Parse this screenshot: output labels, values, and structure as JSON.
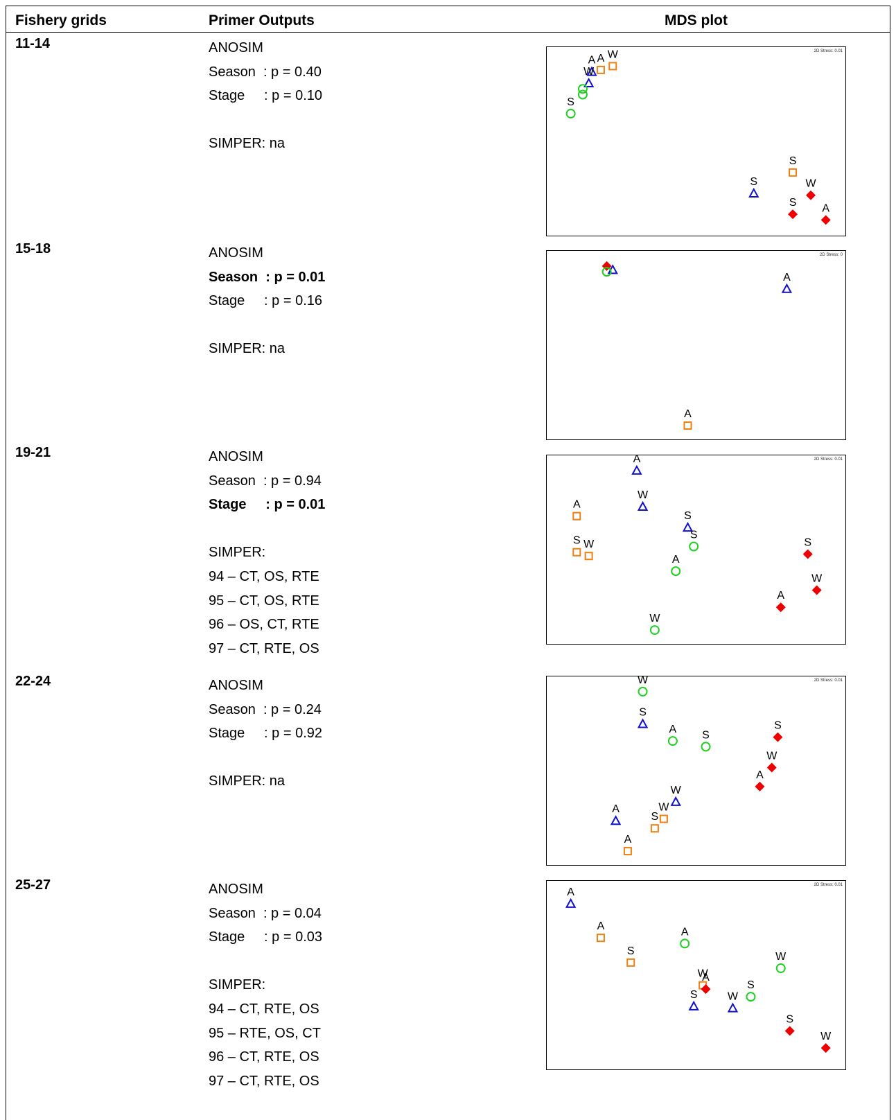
{
  "headers": {
    "grids": "Fishery grids",
    "outputs": "Primer Outputs",
    "plot": "MDS plot"
  },
  "rows": [
    {
      "grid": "11-14",
      "lines": [
        {
          "text": "ANOSIM",
          "bold": false
        },
        {
          "text": "Season  : p = 0.40",
          "bold": false
        },
        {
          "text": "Stage     : p = 0.10",
          "bold": false
        },
        {
          "text": "",
          "bold": false
        },
        {
          "text": "SIMPER: na",
          "bold": false
        }
      ],
      "stress": "2D Stress: 0.01",
      "points": [
        {
          "label": "A",
          "shape": "square",
          "x": 0.18,
          "y": 0.12
        },
        {
          "label": "W",
          "shape": "square",
          "x": 0.22,
          "y": 0.1
        },
        {
          "label": "A",
          "shape": "triangle",
          "x": 0.15,
          "y": 0.13
        },
        {
          "label": "W",
          "shape": "triangle",
          "x": 0.14,
          "y": 0.19
        },
        {
          "label": "",
          "shape": "circle",
          "x": 0.12,
          "y": 0.22
        },
        {
          "label": "",
          "shape": "circle",
          "x": 0.12,
          "y": 0.25
        },
        {
          "label": "S",
          "shape": "circle",
          "x": 0.08,
          "y": 0.35
        },
        {
          "label": "S",
          "shape": "square",
          "x": 0.82,
          "y": 0.66
        },
        {
          "label": "S",
          "shape": "triangle",
          "x": 0.69,
          "y": 0.77
        },
        {
          "label": "W",
          "shape": "diamond",
          "x": 0.88,
          "y": 0.78
        },
        {
          "label": "S",
          "shape": "diamond",
          "x": 0.82,
          "y": 0.88
        },
        {
          "label": "A",
          "shape": "diamond",
          "x": 0.93,
          "y": 0.91
        }
      ]
    },
    {
      "grid": "15-18",
      "lines": [
        {
          "text": "ANOSIM",
          "bold": false
        },
        {
          "text": "Season  : p = 0.01",
          "bold": true
        },
        {
          "text": "Stage     : p = 0.16",
          "bold": false
        },
        {
          "text": "",
          "bold": false
        },
        {
          "text": "SIMPER: na",
          "bold": false
        }
      ],
      "stress": "2D Stress: 0",
      "points": [
        {
          "label": "",
          "shape": "diamond",
          "x": 0.2,
          "y": 0.08
        },
        {
          "label": "",
          "shape": "triangle",
          "x": 0.22,
          "y": 0.1
        },
        {
          "label": "",
          "shape": "circle",
          "x": 0.2,
          "y": 0.11
        },
        {
          "label": "A",
          "shape": "triangle",
          "x": 0.8,
          "y": 0.2
        },
        {
          "label": "A",
          "shape": "square",
          "x": 0.47,
          "y": 0.92
        }
      ]
    },
    {
      "grid": "19-21",
      "lines": [
        {
          "text": "ANOSIM",
          "bold": false
        },
        {
          "text": "Season  : p = 0.94",
          "bold": false
        },
        {
          "text": "Stage     : p = 0.01",
          "bold": true
        },
        {
          "text": "",
          "bold": false
        },
        {
          "text": "SIMPER:",
          "bold": false
        },
        {
          "text": "94 – CT, OS, RTE",
          "bold": false
        },
        {
          "text": "95 – CT, OS, RTE",
          "bold": false
        },
        {
          "text": "96 – OS, CT, RTE",
          "bold": false
        },
        {
          "text": "97 – CT, RTE, OS",
          "bold": false
        }
      ],
      "stress": "2D Stress: 0.01",
      "points": [
        {
          "label": "A",
          "shape": "triangle",
          "x": 0.3,
          "y": 0.08
        },
        {
          "label": "W",
          "shape": "triangle",
          "x": 0.32,
          "y": 0.27
        },
        {
          "label": "A",
          "shape": "square",
          "x": 0.1,
          "y": 0.32
        },
        {
          "label": "S",
          "shape": "triangle",
          "x": 0.47,
          "y": 0.38
        },
        {
          "label": "S",
          "shape": "circle",
          "x": 0.49,
          "y": 0.48
        },
        {
          "label": "S",
          "shape": "square",
          "x": 0.1,
          "y": 0.51
        },
        {
          "label": "W",
          "shape": "square",
          "x": 0.14,
          "y": 0.53
        },
        {
          "label": "A",
          "shape": "circle",
          "x": 0.43,
          "y": 0.61
        },
        {
          "label": "S",
          "shape": "diamond",
          "x": 0.87,
          "y": 0.52
        },
        {
          "label": "W",
          "shape": "diamond",
          "x": 0.9,
          "y": 0.71
        },
        {
          "label": "A",
          "shape": "diamond",
          "x": 0.78,
          "y": 0.8
        },
        {
          "label": "W",
          "shape": "circle",
          "x": 0.36,
          "y": 0.92
        }
      ]
    },
    {
      "grid": "22-24",
      "lines": [
        {
          "text": "ANOSIM",
          "bold": false
        },
        {
          "text": "Season  : p = 0.24",
          "bold": false
        },
        {
          "text": "Stage     : p = 0.92",
          "bold": false
        },
        {
          "text": "",
          "bold": false
        },
        {
          "text": "SIMPER: na",
          "bold": false
        }
      ],
      "stress": "2D Stress: 0.01",
      "points": [
        {
          "label": "W",
          "shape": "circle",
          "x": 0.32,
          "y": 0.08
        },
        {
          "label": "S",
          "shape": "triangle",
          "x": 0.32,
          "y": 0.25
        },
        {
          "label": "A",
          "shape": "circle",
          "x": 0.42,
          "y": 0.34
        },
        {
          "label": "S",
          "shape": "circle",
          "x": 0.53,
          "y": 0.37
        },
        {
          "label": "S",
          "shape": "diamond",
          "x": 0.77,
          "y": 0.32
        },
        {
          "label": "W",
          "shape": "diamond",
          "x": 0.75,
          "y": 0.48
        },
        {
          "label": "A",
          "shape": "diamond",
          "x": 0.71,
          "y": 0.58
        },
        {
          "label": "W",
          "shape": "triangle",
          "x": 0.43,
          "y": 0.66
        },
        {
          "label": "W",
          "shape": "square",
          "x": 0.39,
          "y": 0.75
        },
        {
          "label": "S",
          "shape": "square",
          "x": 0.36,
          "y": 0.8
        },
        {
          "label": "A",
          "shape": "triangle",
          "x": 0.23,
          "y": 0.76
        },
        {
          "label": "A",
          "shape": "square",
          "x": 0.27,
          "y": 0.92
        }
      ]
    },
    {
      "grid": "25-27",
      "lines": [
        {
          "text": "ANOSIM",
          "bold": false
        },
        {
          "text": "Season  : p = 0.04",
          "bold": false
        },
        {
          "text": "Stage     : p = 0.03",
          "bold": false
        },
        {
          "text": "",
          "bold": false
        },
        {
          "text": "SIMPER:",
          "bold": false
        },
        {
          "text": "94 – CT, RTE, OS",
          "bold": false
        },
        {
          "text": "95 – RTE, OS, CT",
          "bold": false
        },
        {
          "text": "96 – CT, RTE, OS",
          "bold": false
        },
        {
          "text": "97 – CT, RTE, OS",
          "bold": false
        }
      ],
      "stress": "2D Stress: 0.01",
      "points": [
        {
          "label": "A",
          "shape": "triangle",
          "x": 0.08,
          "y": 0.12
        },
        {
          "label": "A",
          "shape": "square",
          "x": 0.18,
          "y": 0.3
        },
        {
          "label": "S",
          "shape": "square",
          "x": 0.28,
          "y": 0.43
        },
        {
          "label": "A",
          "shape": "circle",
          "x": 0.46,
          "y": 0.33
        },
        {
          "label": "W",
          "shape": "circle",
          "x": 0.78,
          "y": 0.46
        },
        {
          "label": "W",
          "shape": "square",
          "x": 0.52,
          "y": 0.55
        },
        {
          "label": "A",
          "shape": "diamond",
          "x": 0.53,
          "y": 0.57
        },
        {
          "label": "S",
          "shape": "triangle",
          "x": 0.49,
          "y": 0.66
        },
        {
          "label": "W",
          "shape": "triangle",
          "x": 0.62,
          "y": 0.67
        },
        {
          "label": "S",
          "shape": "circle",
          "x": 0.68,
          "y": 0.61
        },
        {
          "label": "S",
          "shape": "diamond",
          "x": 0.81,
          "y": 0.79
        },
        {
          "label": "W",
          "shape": "diamond",
          "x": 0.93,
          "y": 0.88
        }
      ]
    }
  ],
  "colors": {
    "square": "#f07f10",
    "triangle": "#1010d0",
    "circle": "#20d020",
    "diamond": "#ee0000"
  }
}
